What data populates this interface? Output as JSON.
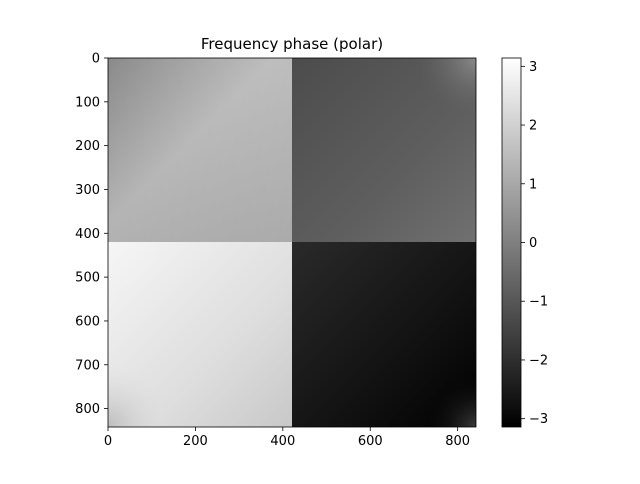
{
  "chart_data": {
    "type": "heatmap",
    "title": "Frequency phase (polar)",
    "xlabel": "",
    "ylabel": "",
    "image_size": [
      842,
      842
    ],
    "xlim": [
      0,
      842
    ],
    "ylim": [
      842,
      0
    ],
    "x_ticks": [
      0,
      200,
      400,
      600,
      800
    ],
    "y_ticks": [
      0,
      100,
      200,
      300,
      400,
      500,
      600,
      700,
      800
    ],
    "colormap": "gray",
    "colorbar": {
      "vmin": -3.1416,
      "vmax": 3.1416,
      "ticks": [
        -3,
        -2,
        -1,
        0,
        1,
        2,
        3
      ],
      "tick_labels": [
        "−3",
        "−2",
        "−1",
        "0",
        "1",
        "2",
        "3"
      ],
      "placement": "right"
    },
    "quadrants": [
      {
        "name": "top-left",
        "x_range": [
          0,
          421
        ],
        "y_range": [
          0,
          421
        ],
        "phase_range": [
          0.55,
          1.6
        ]
      },
      {
        "name": "top-right",
        "x_range": [
          421,
          842
        ],
        "y_range": [
          0,
          421
        ],
        "phase_range": [
          -1.6,
          -0.55
        ]
      },
      {
        "name": "bottom-left",
        "x_range": [
          0,
          421
        ],
        "y_range": [
          421,
          842
        ],
        "phase_range": [
          2.2,
          3.14
        ]
      },
      {
        "name": "bottom-right",
        "x_range": [
          421,
          842
        ],
        "y_range": [
          421,
          842
        ],
        "phase_range": [
          -3.14,
          -2.2
        ]
      }
    ],
    "grid": false
  }
}
